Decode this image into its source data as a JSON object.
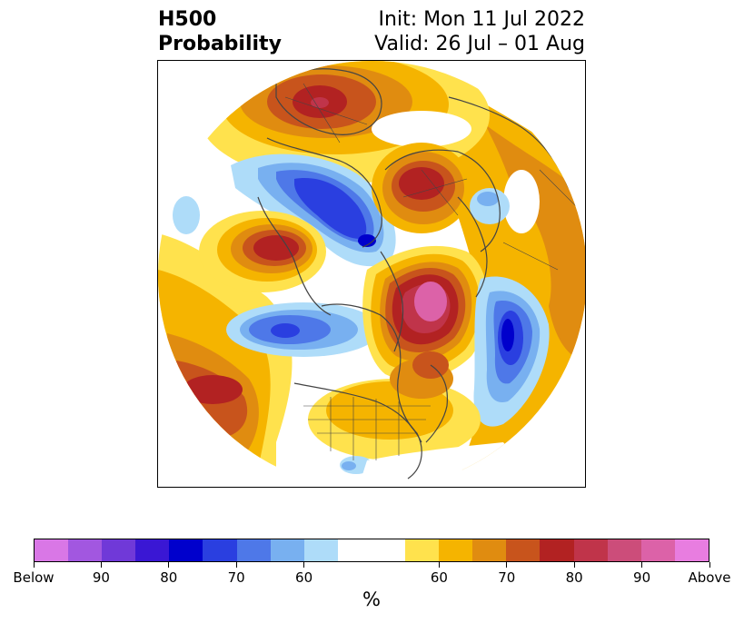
{
  "title": {
    "left_line1": "H500",
    "left_line2": "Probability",
    "right_line1": "Init: Mon 11 Jul 2022",
    "right_line2": "Valid: 26 Jul – 01 Aug"
  },
  "colorbar": {
    "colors": [
      "#d977e6",
      "#a257e0",
      "#7039d8",
      "#3a17d4",
      "#0000cc",
      "#2a3fe0",
      "#4e78e8",
      "#78b0f0",
      "#aedcf9",
      "#ffffff",
      "#ffffff",
      "#ffe24d",
      "#f5b400",
      "#e08c10",
      "#c8541c",
      "#b22222",
      "#c0344a",
      "#cc4d7a",
      "#dc62a8",
      "#e87de0"
    ],
    "tick_labels": [
      "Below",
      "90",
      "80",
      "70",
      "60",
      "60",
      "70",
      "80",
      "90",
      "Above"
    ],
    "unit": "%"
  },
  "map": {
    "projection": "north polar stereographic",
    "palette": {
      "yellow": "#ffe24d",
      "gold": "#f5b400",
      "orange": "#e08c10",
      "dkorange": "#c8541c",
      "red": "#b22222",
      "crimson": "#c0344a",
      "pink": "#dc62a8",
      "ltblue": "#aedcf9",
      "sky": "#78b0f0",
      "blue": "#4e78e8",
      "royal": "#2a3fe0",
      "navy": "#0000cc",
      "coast": "#444444"
    }
  }
}
